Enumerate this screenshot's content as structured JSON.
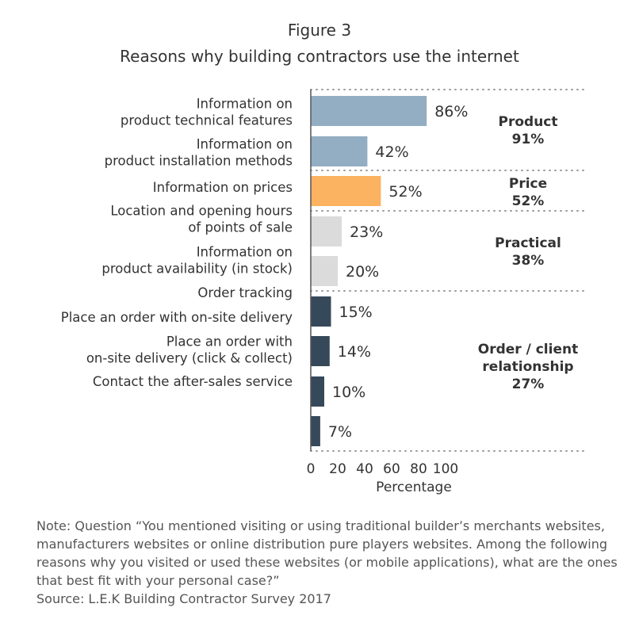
{
  "figure_label": "Figure 3",
  "title": "Reasons why building contractors use the internet",
  "note": "Note: Question “You mentioned visiting or using traditional builder’s merchants websites, manufacturers websites or online distribution pure players websites. Among the following reasons why you visited or used these websites (or mobile applications), what are the ones that best fit with your personal case?”",
  "source": "Source: L.E.K Building Contractor Survey 2017",
  "colors": {
    "product": "#93adc2",
    "price": "#fbb261",
    "practical": "#dbdbdb",
    "order": "#36495a",
    "text": "#333333",
    "divider": "#9a9a9a"
  },
  "chart_data": {
    "type": "bar",
    "orientation": "horizontal",
    "xlabel": "Percentage",
    "xlim": [
      0,
      100
    ],
    "xticks": [
      "0",
      "20",
      "40",
      "60",
      "80",
      "100"
    ],
    "category_labels": [
      [
        "Information on",
        "product technical features"
      ],
      [
        "Information on",
        "product installation methods"
      ],
      [
        "Information on prices"
      ],
      [
        "Location and opening hours",
        "of points of sale"
      ],
      [
        "Information on",
        "product availability (in stock)"
      ],
      [
        "Order tracking"
      ],
      [
        "Place an order with on-site delivery"
      ],
      [
        "Place an order with",
        "on-site delivery (click & collect)"
      ],
      [
        "Contact the after-sales service"
      ]
    ],
    "values": [
      86,
      42,
      52,
      23,
      20,
      15,
      14,
      10,
      7
    ],
    "value_labels": [
      "86%",
      "42%",
      "52%",
      "23%",
      "20%",
      "15%",
      "14%",
      "10%",
      "7%"
    ],
    "groups": [
      "product",
      "product",
      "price",
      "practical",
      "practical",
      "order",
      "order",
      "order",
      "order"
    ],
    "group_labels": [
      {
        "group": "product",
        "lines": [
          "Product",
          "91%"
        ]
      },
      {
        "group": "price",
        "lines": [
          "Price",
          "52%"
        ]
      },
      {
        "group": "practical",
        "lines": [
          "Practical",
          "38%"
        ]
      },
      {
        "group": "order",
        "lines": [
          "Order / client",
          "relationship",
          "27%"
        ]
      }
    ]
  }
}
